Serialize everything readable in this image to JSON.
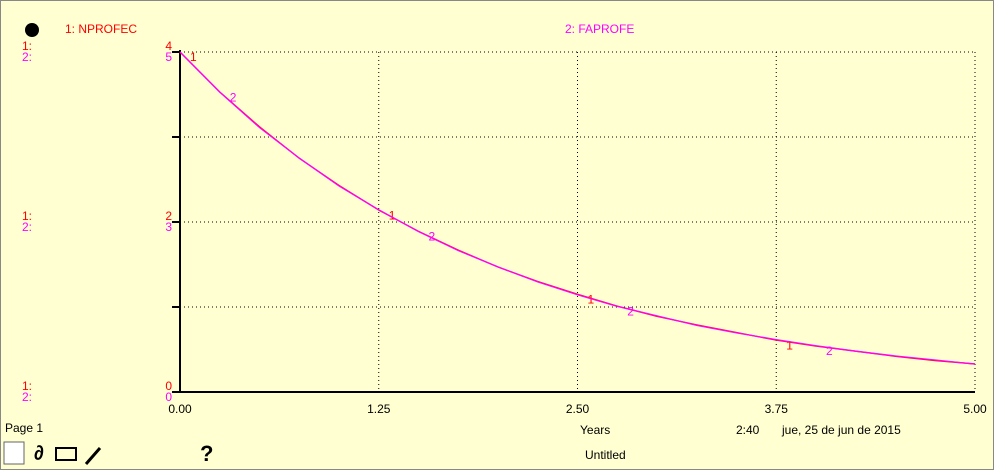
{
  "chart_data": {
    "type": "line",
    "series": [
      {
        "name": "1: NPROFEC",
        "marker_label": "1",
        "color": "#ff0000",
        "values": [
          4,
          3.53,
          3.12,
          2.75,
          2.43,
          2.14,
          1.89,
          1.67,
          1.47,
          1.3,
          1.15,
          1.01,
          0.89,
          0.79,
          0.7,
          0.61,
          0.54,
          0.48,
          0.42,
          0.37,
          0.33
        ]
      },
      {
        "name": "2: FAPROFE",
        "marker_label": "2",
        "color": "#ff00ff",
        "axis": "y2",
        "values": [
          5,
          4.41,
          3.89,
          3.44,
          3.03,
          2.68,
          2.36,
          2.08,
          1.84,
          1.62,
          1.43,
          1.26,
          1.12,
          0.98,
          0.87,
          0.77,
          0.68,
          0.6,
          0.53,
          0.47,
          0.41
        ]
      }
    ],
    "x": [
      0,
      0.25,
      0.5,
      0.75,
      1,
      1.25,
      1.5,
      1.75,
      2,
      2.25,
      2.5,
      2.75,
      3,
      3.25,
      3.5,
      3.75,
      4,
      4.25,
      4.5,
      4.75,
      5
    ],
    "xlim": [
      0,
      5
    ],
    "xticks": [
      {
        "value": 0,
        "label": "0.00"
      },
      {
        "value": 1.25,
        "label": "1.25"
      },
      {
        "value": 2.5,
        "label": "2.50"
      },
      {
        "value": 3.75,
        "label": "3.75"
      },
      {
        "value": 5,
        "label": "5.00"
      }
    ],
    "ylim": [
      0,
      4
    ],
    "yticks": [
      0,
      2,
      4
    ],
    "y2lim": [
      0,
      5
    ],
    "y2ticks": [
      0,
      {
        "value": 2.5,
        "label": "3"
      },
      5
    ],
    "axis_prefixes": [
      "1:",
      "2:"
    ],
    "x_label": "Years",
    "grid": true
  },
  "footer": {
    "page": "Page 1",
    "time": "2:40",
    "date": "jue, 25 de jun de 2015",
    "document": "Untitled",
    "help": "?"
  }
}
